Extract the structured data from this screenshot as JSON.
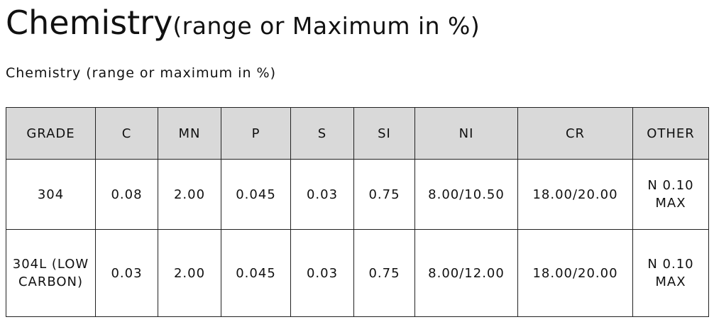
{
  "header": {
    "title": "Chemistry",
    "title_suffix": "(range or Maximum in %)",
    "subtitle": "Chemistry (range or maximum in %)"
  },
  "table": {
    "columns": [
      "GRADE",
      "C",
      "MN",
      "P",
      "S",
      "SI",
      "NI",
      "CR",
      "OTHER"
    ],
    "rows": [
      [
        "304",
        "0.08",
        "2.00",
        "0.045",
        "0.03",
        "0.75",
        "8.00/10.50",
        "18.00/20.00",
        "N 0.10 MAX"
      ],
      [
        "304L (LOW CARBON)",
        "0.03",
        "2.00",
        "0.045",
        "0.03",
        "0.75",
        "8.00/12.00",
        "18.00/20.00",
        "N 0.10 MAX"
      ]
    ]
  }
}
